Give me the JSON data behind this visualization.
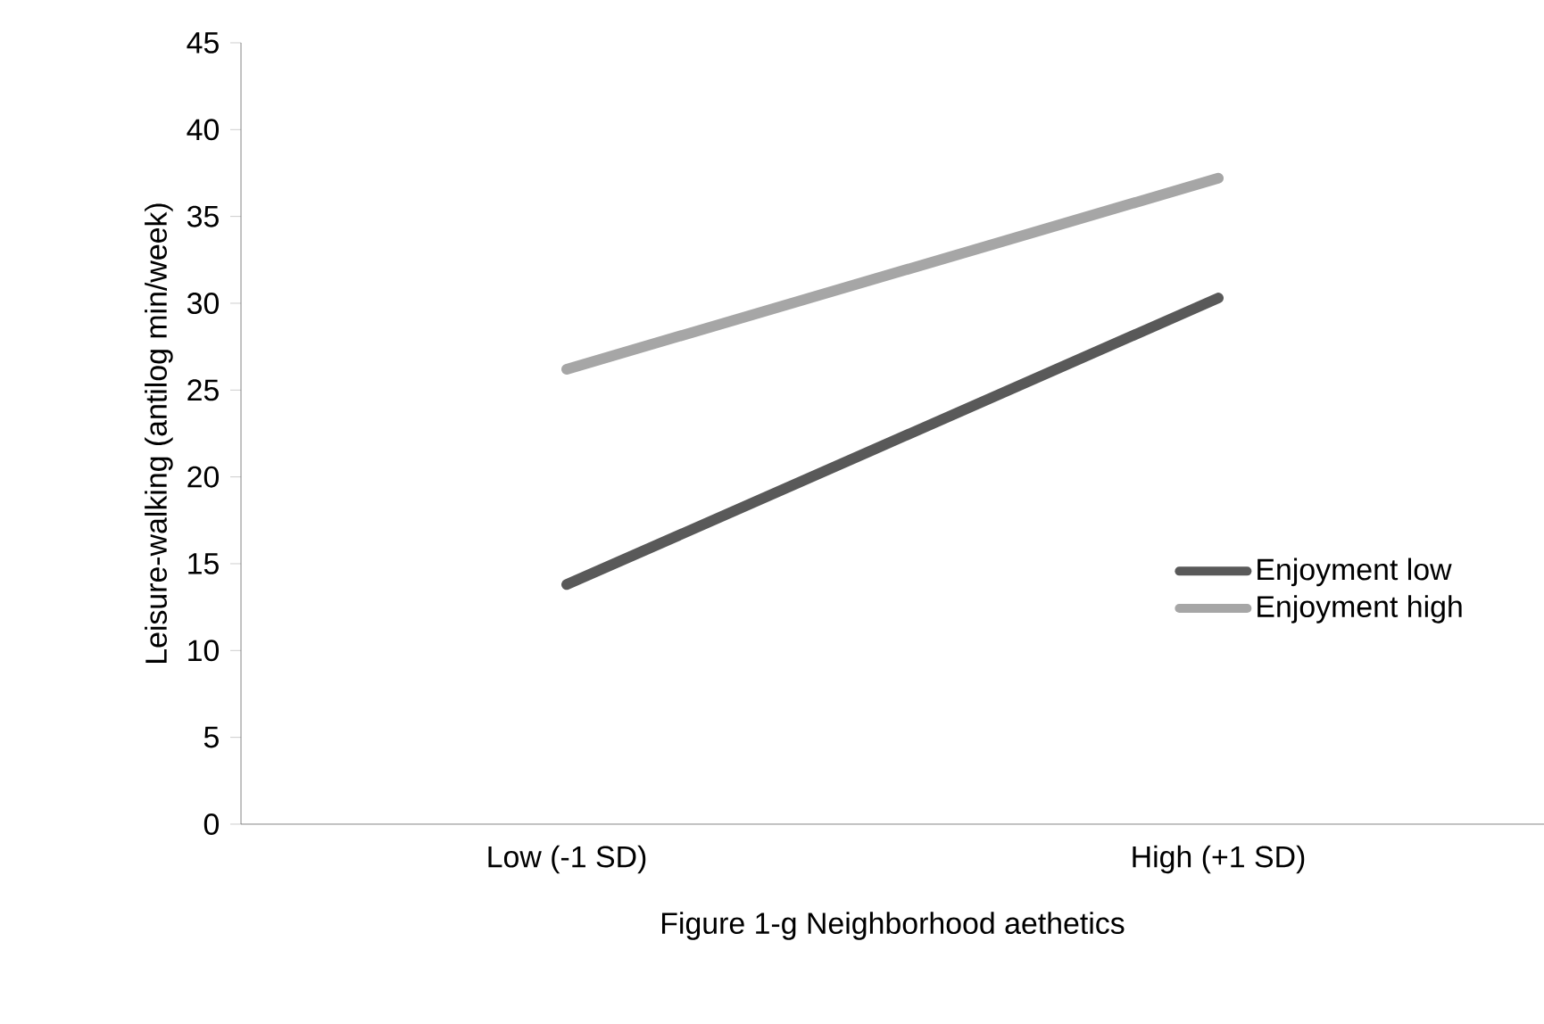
{
  "chart_data": {
    "type": "line",
    "xlabel": "Figure 1-g Neighborhood aethetics",
    "ylabel": "Leisure-walking (antilog min/week)",
    "categories": [
      "Low (-1 SD)",
      "High (+1 SD)"
    ],
    "series": [
      {
        "name": "Enjoyment low",
        "color": "#595959",
        "values": [
          13.8,
          30.3
        ]
      },
      {
        "name": "Enjoyment high",
        "color": "#a6a6a6",
        "values": [
          26.2,
          37.2
        ]
      }
    ],
    "ylim": [
      0,
      45
    ],
    "yticks": [
      0,
      5,
      10,
      15,
      20,
      25,
      30,
      35,
      40,
      45
    ],
    "grid": false,
    "legend": "right",
    "marker": "none",
    "line_style": "solid"
  }
}
